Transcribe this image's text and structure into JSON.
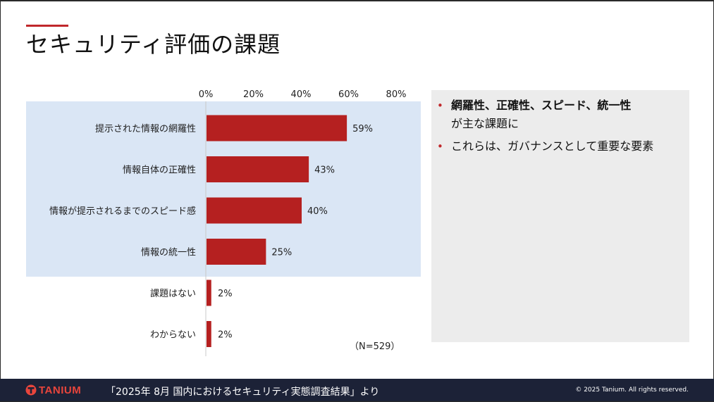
{
  "slide": {
    "title": "セキュリティ評価の課題"
  },
  "chart_data": {
    "type": "bar",
    "orientation": "horizontal",
    "categories": [
      "提示された情報の網羅性",
      "情報自体の正確性",
      "情報が提示されるまでのスピード感",
      "情報の統一性",
      "課題はない",
      "わからない"
    ],
    "values": [
      59,
      43,
      40,
      25,
      2,
      2
    ],
    "value_labels": [
      "59%",
      "43%",
      "40%",
      "25%",
      "2%",
      "2%"
    ],
    "ticks": [
      "0%",
      "20%",
      "40%",
      "60%",
      "80%"
    ],
    "xlim": [
      0,
      80
    ],
    "highlighted_categories": 4,
    "note": "（N=529）",
    "colors": {
      "bar": "#b52020",
      "highlight": "#dae6f5"
    }
  },
  "panel": {
    "bullets": [
      {
        "bold": "網羅性、正確性、スピード、統一性",
        "line2": "が主な課題に"
      },
      {
        "text": "これらは、ガバナンスとして重要な要素"
      }
    ]
  },
  "footer": {
    "logo_text": "TANIUM",
    "source": "「2025年 8月 国内におけるセキュリティ実態調査結果」より",
    "copyright": "© 2025 Tanium. All rights reserved."
  }
}
